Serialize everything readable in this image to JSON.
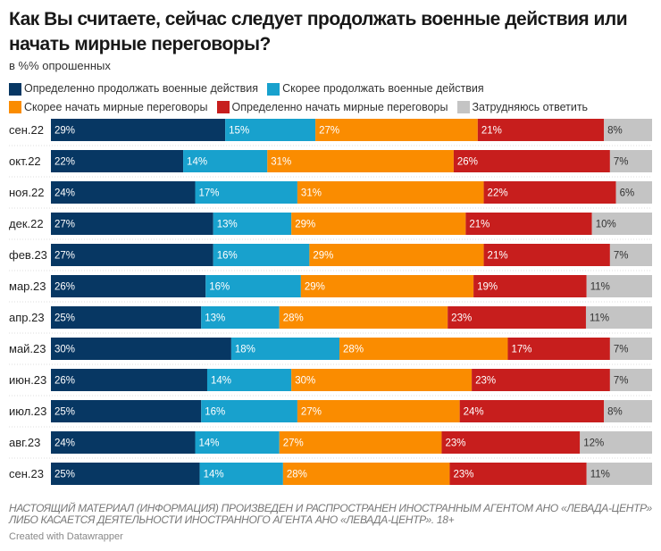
{
  "title": "Как Вы считаете, сейчас следует продолжать военные действия или начать мирные переговоры?",
  "subtitle": "в %% опрошенных",
  "notes": "НАСТОЯЩИЙ МАТЕРИАЛ (ИНФОРМАЦИЯ) ПРОИЗВЕДЕН И РАСПРОСТРАНЕН ИНОСТРАННЫМ АГЕНТОМ АНО «ЛЕВАДА-ЦЕНТР» ЛИБО КАСАЕТСЯ ДЕЯТЕЛЬНОСТИ ИНОСТРАННОГО АГЕНТА АНО «ЛЕВАДА-ЦЕНТР». 18+",
  "credit": "Created with Datawrapper",
  "chart_data": {
    "type": "bar",
    "orientation": "horizontal",
    "stacked": true,
    "value_suffix": "%",
    "categories": [
      "сен.22",
      "окт.22",
      "ноя.22",
      "дек.22",
      "фев.23",
      "мар.23",
      "апр.23",
      "май.23",
      "июн.23",
      "июл.23",
      "авг.23",
      "сен.23"
    ],
    "legend_position": "top",
    "series": [
      {
        "name": "Определенно продолжать военные действия",
        "color": "#073763",
        "values": [
          29,
          22,
          24,
          27,
          27,
          26,
          25,
          30,
          26,
          25,
          24,
          25
        ]
      },
      {
        "name": "Скорее продолжать военные действия",
        "color": "#18a1cd",
        "values": [
          15,
          14,
          17,
          13,
          16,
          16,
          13,
          18,
          14,
          16,
          14,
          14
        ]
      },
      {
        "name": "Скорее начать мирные переговоры",
        "color": "#fa8c00",
        "values": [
          27,
          31,
          31,
          29,
          29,
          29,
          28,
          28,
          30,
          27,
          27,
          28
        ]
      },
      {
        "name": "Определенно начать мирные переговоры",
        "color": "#c71e1d",
        "values": [
          21,
          26,
          22,
          21,
          21,
          19,
          23,
          17,
          23,
          24,
          23,
          23
        ]
      },
      {
        "name": "Затрудняюсь ответить",
        "color": "#c4c4c4",
        "values": [
          8,
          7,
          6,
          10,
          7,
          11,
          11,
          7,
          7,
          8,
          12,
          11
        ]
      }
    ]
  }
}
